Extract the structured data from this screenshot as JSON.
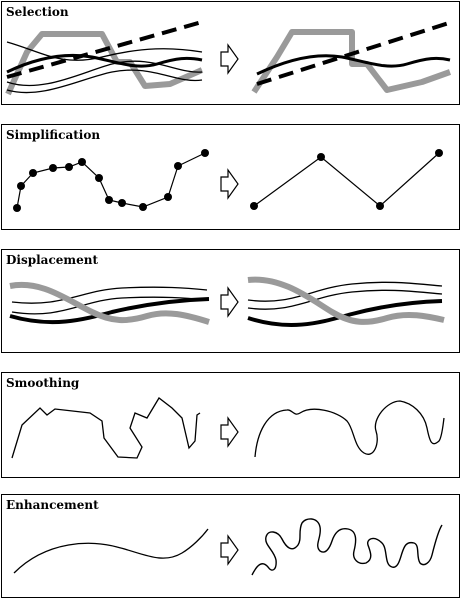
{
  "panels": [
    {
      "id": "selection",
      "title": "Selection"
    },
    {
      "id": "simplification",
      "title": "Simplification"
    },
    {
      "id": "displacement",
      "title": "Displacement"
    },
    {
      "id": "smoothing",
      "title": "Smoothing"
    },
    {
      "id": "enhancement",
      "title": "Enhancement"
    }
  ],
  "colors": {
    "line": "#000000",
    "gray": "#9a9a9a",
    "background": "#ffffff"
  },
  "icons": {
    "transition": "outline-right-arrow-icon",
    "vertex": "vertex-dot-icon"
  }
}
